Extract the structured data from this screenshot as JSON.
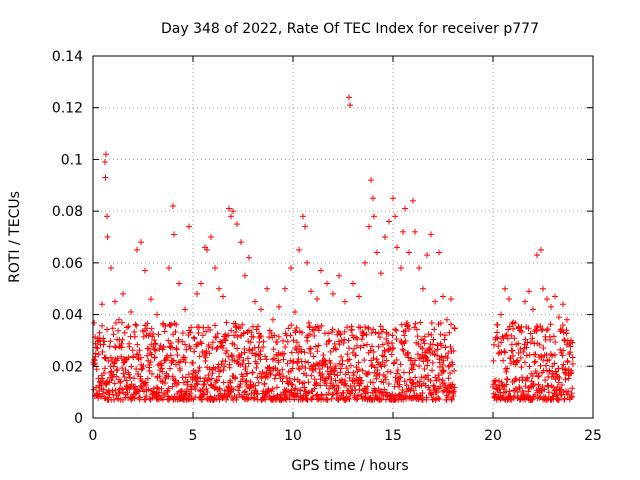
{
  "chart_data": {
    "type": "scatter",
    "title": "Day 348 of 2022, Rate Of TEC Index for receiver p777",
    "xlabel": "GPS time / hours",
    "ylabel": "ROTI / TECUs",
    "xlim": [
      0,
      25
    ],
    "ylim": [
      0,
      0.14
    ],
    "xticks": [
      0,
      5,
      10,
      15,
      20,
      25
    ],
    "xtick_labels": [
      "0",
      "5",
      "10",
      "15",
      "20",
      "25"
    ],
    "yticks": [
      0,
      0.02,
      0.04,
      0.06,
      0.08,
      0.1,
      0.12,
      0.14
    ],
    "ytick_labels": [
      "0",
      "0.02",
      "0.04",
      "0.06",
      "0.08",
      "0.1",
      "0.12",
      "0.14"
    ],
    "grid": true,
    "marker": "plus",
    "marker_color": "#ff0000",
    "data_gaps_hours": [
      [
        18.1,
        20.0
      ]
    ],
    "series": [
      {
        "points": [
          [
            0.1,
            0.021
          ],
          [
            0.3,
            0.03
          ],
          [
            0.45,
            0.044
          ],
          [
            0.6,
            0.099
          ],
          [
            0.62,
            0.093
          ],
          [
            0.65,
            0.102
          ],
          [
            0.7,
            0.078
          ],
          [
            0.72,
            0.07
          ],
          [
            0.9,
            0.058
          ],
          [
            1.1,
            0.045
          ],
          [
            1.3,
            0.038
          ],
          [
            1.5,
            0.048
          ],
          [
            1.7,
            0.035
          ],
          [
            1.9,
            0.041
          ],
          [
            2.2,
            0.065
          ],
          [
            2.4,
            0.068
          ],
          [
            2.6,
            0.057
          ],
          [
            2.9,
            0.046
          ],
          [
            3.2,
            0.04
          ],
          [
            3.5,
            0.036
          ],
          [
            3.8,
            0.058
          ],
          [
            4.0,
            0.082
          ],
          [
            4.05,
            0.071
          ],
          [
            4.3,
            0.052
          ],
          [
            4.6,
            0.042
          ],
          [
            4.8,
            0.074
          ],
          [
            5.2,
            0.048
          ],
          [
            5.4,
            0.052
          ],
          [
            5.6,
            0.066
          ],
          [
            5.7,
            0.065
          ],
          [
            5.9,
            0.07
          ],
          [
            6.1,
            0.058
          ],
          [
            6.3,
            0.05
          ],
          [
            6.5,
            0.047
          ],
          [
            6.8,
            0.081
          ],
          [
            6.9,
            0.078
          ],
          [
            7.0,
            0.08
          ],
          [
            7.2,
            0.075
          ],
          [
            7.4,
            0.068
          ],
          [
            7.6,
            0.055
          ],
          [
            7.8,
            0.062
          ],
          [
            8.1,
            0.045
          ],
          [
            8.4,
            0.042
          ],
          [
            8.7,
            0.05
          ],
          [
            9.0,
            0.038
          ],
          [
            9.3,
            0.043
          ],
          [
            9.6,
            0.05
          ],
          [
            9.9,
            0.058
          ],
          [
            10.1,
            0.041
          ],
          [
            10.3,
            0.065
          ],
          [
            10.5,
            0.078
          ],
          [
            10.6,
            0.074
          ],
          [
            10.7,
            0.06
          ],
          [
            10.9,
            0.049
          ],
          [
            11.2,
            0.046
          ],
          [
            11.4,
            0.057
          ],
          [
            11.7,
            0.052
          ],
          [
            12.0,
            0.048
          ],
          [
            12.3,
            0.055
          ],
          [
            12.6,
            0.045
          ],
          [
            12.8,
            0.124
          ],
          [
            12.85,
            0.121
          ],
          [
            13.0,
            0.052
          ],
          [
            13.3,
            0.047
          ],
          [
            13.6,
            0.06
          ],
          [
            13.8,
            0.074
          ],
          [
            13.9,
            0.092
          ],
          [
            14.0,
            0.085
          ],
          [
            14.05,
            0.078
          ],
          [
            14.2,
            0.064
          ],
          [
            14.4,
            0.056
          ],
          [
            14.6,
            0.07
          ],
          [
            14.8,
            0.076
          ],
          [
            15.0,
            0.085
          ],
          [
            15.1,
            0.078
          ],
          [
            15.2,
            0.066
          ],
          [
            15.4,
            0.058
          ],
          [
            15.5,
            0.072
          ],
          [
            15.6,
            0.081
          ],
          [
            15.8,
            0.064
          ],
          [
            16.0,
            0.084
          ],
          [
            16.1,
            0.072
          ],
          [
            16.3,
            0.058
          ],
          [
            16.5,
            0.05
          ],
          [
            16.7,
            0.063
          ],
          [
            16.9,
            0.071
          ],
          [
            17.1,
            0.045
          ],
          [
            17.3,
            0.064
          ],
          [
            17.5,
            0.047
          ],
          [
            17.7,
            0.038
          ],
          [
            17.9,
            0.046
          ],
          [
            20.2,
            0.036
          ],
          [
            20.4,
            0.04
          ],
          [
            20.6,
            0.05
          ],
          [
            20.8,
            0.046
          ],
          [
            21.0,
            0.037
          ],
          [
            21.3,
            0.035
          ],
          [
            21.6,
            0.045
          ],
          [
            21.8,
            0.049
          ],
          [
            22.0,
            0.042
          ],
          [
            22.2,
            0.063
          ],
          [
            22.4,
            0.065
          ],
          [
            22.5,
            0.05
          ],
          [
            22.7,
            0.046
          ],
          [
            22.9,
            0.043
          ],
          [
            23.1,
            0.047
          ],
          [
            23.3,
            0.039
          ],
          [
            23.5,
            0.044
          ],
          [
            23.7,
            0.038
          ],
          [
            23.9,
            0.03
          ]
        ]
      }
    ]
  }
}
